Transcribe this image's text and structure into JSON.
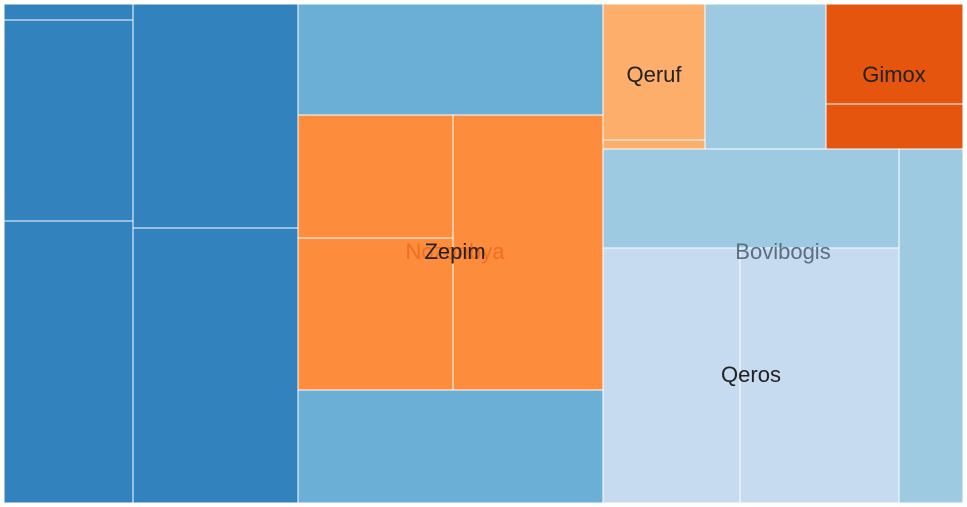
{
  "chart_data": {
    "type": "treemap",
    "legend": "none",
    "tiles": [
      {
        "group": "",
        "value": 12,
        "color": "#3182bd"
      },
      {
        "group": "",
        "value": 150,
        "color": "#3182bd"
      },
      {
        "group": "",
        "value": 210,
        "color": "#3182bd"
      },
      {
        "group": "",
        "value": 162,
        "color": "#3182bd"
      },
      {
        "group": "",
        "value": 209,
        "color": "#3182bd"
      },
      {
        "group": "",
        "value": 223,
        "color": "#6baed6"
      },
      {
        "group": "",
        "value": 224,
        "color": "#6baed6"
      },
      {
        "group": "Nozonbya",
        "value": 125,
        "color": "#fd8d3c"
      },
      {
        "group": "Nozonbya",
        "value": 156,
        "color": "#fd8d3c"
      },
      {
        "group": "Zepim",
        "value": 272,
        "color": "#fd8d3c"
      },
      {
        "group": "Qeruf",
        "value": 74,
        "color": "#fdae6b"
      },
      {
        "group": "Qeruf",
        "value": 5,
        "color": "#fdae6b"
      },
      {
        "group": "",
        "value": 105,
        "color": "#9ecae1"
      },
      {
        "group": "Gimox",
        "value": 68,
        "color": "#e6550d"
      },
      {
        "group": "Gimox",
        "value": 31,
        "color": "#e6550d"
      },
      {
        "group": "Bovibogis",
        "value": 194,
        "color": "#9ecae1"
      },
      {
        "group": "Bovibogis",
        "value": 118,
        "color": "#9ecae1"
      },
      {
        "group": "Qeros",
        "value": 232,
        "color": "#c6dbef"
      },
      {
        "group": "Qeros",
        "value": 269,
        "color": "#c6dbef"
      }
    ],
    "labels": [
      {
        "text": "Nozonbya",
        "color": "#e6550d",
        "opacity": 0.55
      },
      {
        "text": "Zepim",
        "color": "#222222",
        "opacity": 1
      },
      {
        "text": "Qeruf",
        "color": "#222222",
        "opacity": 1
      },
      {
        "text": "Gimox",
        "color": "#222222",
        "opacity": 1
      },
      {
        "text": "Bovibogis",
        "color": "#5a6e82",
        "opacity": 1
      },
      {
        "text": "Qeros",
        "color": "#222222",
        "opacity": 1
      }
    ]
  }
}
